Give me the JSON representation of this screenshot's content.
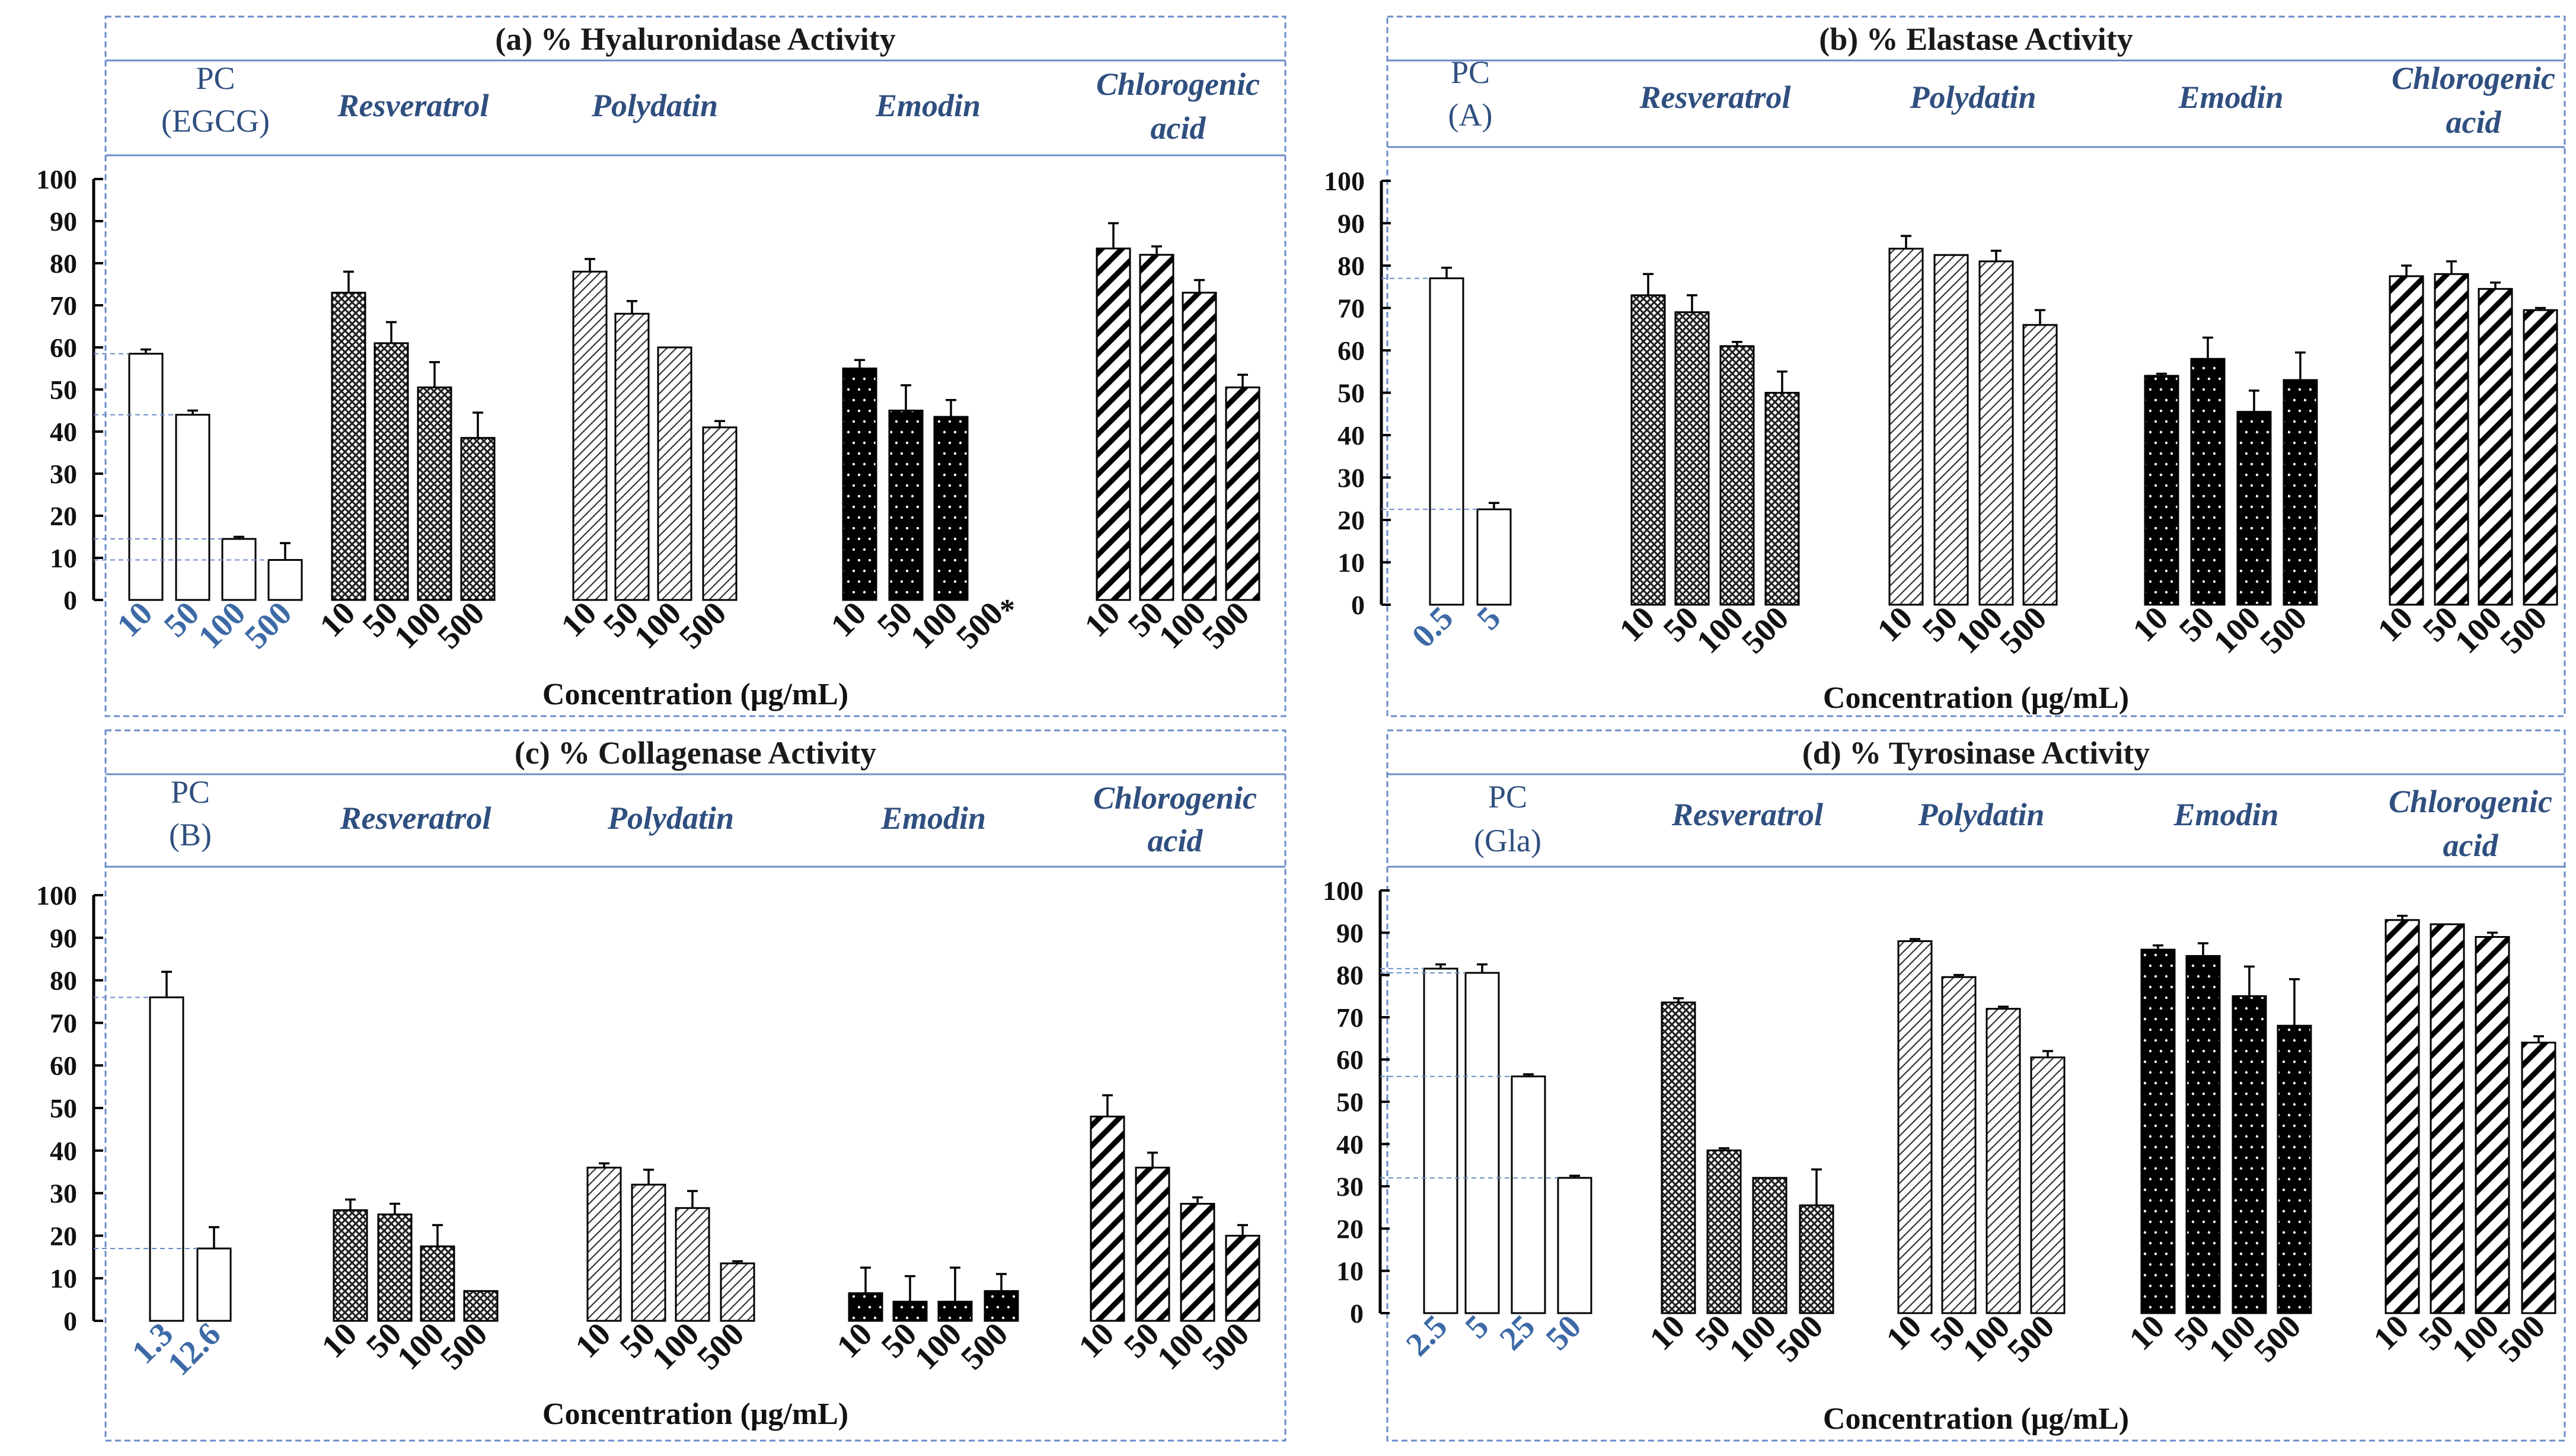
{
  "colors": {
    "border": "#6b8cc7",
    "text_blue": "#2f4f7f",
    "pc_tick": "#3d6aa6",
    "bar_edge": "#000000"
  },
  "chart_data": [
    {
      "id": "a",
      "type": "bar",
      "title": "(a) % Hyaluronidase Activity",
      "xlabel": "Concentration (μg/mL)",
      "ylabel": "",
      "ylim": [
        0,
        100
      ],
      "yticks": [
        "0",
        "10",
        "20",
        "30",
        "40",
        "50",
        "60",
        "70",
        "80",
        "90",
        "100"
      ],
      "groups": [
        {
          "name": "PC (EGCG)",
          "label_lines": [
            "PC",
            "(EGCG)"
          ],
          "pattern": "white",
          "categories": [
            "10",
            "50",
            "100",
            "500"
          ],
          "values": [
            58.5,
            44,
            14.5,
            9.5
          ],
          "errors": [
            1,
            1,
            0.5,
            4
          ]
        },
        {
          "name": "Resveratrol",
          "label_lines": [
            "Resveratrol"
          ],
          "pattern": "cross",
          "categories": [
            "10",
            "50",
            "100",
            "500"
          ],
          "values": [
            73,
            61,
            50.5,
            38.5
          ],
          "errors": [
            5,
            5,
            6,
            6
          ]
        },
        {
          "name": "Polydatin",
          "label_lines": [
            "Polydatin"
          ],
          "pattern": "diag-thin",
          "categories": [
            "10",
            "50",
            "100",
            "500"
          ],
          "values": [
            78,
            68,
            60,
            41
          ],
          "errors": [
            3,
            3,
            0,
            1.5
          ]
        },
        {
          "name": "Emodin",
          "label_lines": [
            "Emodin"
          ],
          "pattern": "dots",
          "categories": [
            "10",
            "50",
            "100",
            "500"
          ],
          "values": [
            55,
            45,
            43.5,
            0
          ],
          "errors": [
            2,
            6,
            4,
            0
          ],
          "annotation": "*"
        },
        {
          "name": "Chlorogenic acid",
          "label_lines": [
            "Chlorogenic",
            "acid"
          ],
          "pattern": "diag-thick",
          "categories": [
            "10",
            "50",
            "100",
            "500"
          ],
          "values": [
            83.5,
            82,
            73,
            50.5
          ],
          "errors": [
            6,
            2,
            3,
            3
          ]
        }
      ]
    },
    {
      "id": "b",
      "type": "bar",
      "title": "(b) % Elastase Activity",
      "xlabel": "Concentration (μg/mL)",
      "ylabel": "",
      "ylim": [
        0,
        100
      ],
      "yticks": [
        "0",
        "10",
        "20",
        "30",
        "40",
        "50",
        "60",
        "70",
        "80",
        "90",
        "100"
      ],
      "groups": [
        {
          "name": "PC (A)",
          "label_lines": [
            "PC",
            "(A)"
          ],
          "pattern": "white",
          "categories": [
            "0.5",
            "5"
          ],
          "values": [
            77,
            22.5
          ],
          "errors": [
            2.5,
            1.5
          ]
        },
        {
          "name": "Resveratrol",
          "label_lines": [
            "Resveratrol"
          ],
          "pattern": "cross",
          "categories": [
            "10",
            "50",
            "100",
            "500"
          ],
          "values": [
            73,
            69,
            61,
            50
          ],
          "errors": [
            5,
            4,
            1,
            5
          ]
        },
        {
          "name": "Polydatin",
          "label_lines": [
            "Polydatin"
          ],
          "pattern": "diag-thin",
          "categories": [
            "10",
            "50",
            "100",
            "500"
          ],
          "values": [
            84,
            82.5,
            81,
            66
          ],
          "errors": [
            3,
            0,
            2.5,
            3.5
          ]
        },
        {
          "name": "Emodin",
          "label_lines": [
            "Emodin"
          ],
          "pattern": "dots",
          "categories": [
            "10",
            "50",
            "100",
            "500"
          ],
          "values": [
            54,
            58,
            45.5,
            53
          ],
          "errors": [
            0.5,
            5,
            5,
            6.5
          ]
        },
        {
          "name": "Chlorogenic acid",
          "label_lines": [
            "Chlorogenic",
            "acid"
          ],
          "pattern": "diag-thick",
          "categories": [
            "10",
            "50",
            "100",
            "500"
          ],
          "values": [
            77.5,
            78,
            74.5,
            69.5
          ],
          "errors": [
            2.5,
            3,
            1.5,
            0.5
          ]
        }
      ]
    },
    {
      "id": "c",
      "type": "bar",
      "title": "(c) % Collagenase Activity",
      "xlabel": "Concentration (μg/mL)",
      "ylabel": "",
      "ylim": [
        0,
        100
      ],
      "yticks": [
        "0",
        "10",
        "20",
        "30",
        "40",
        "50",
        "60",
        "70",
        "80",
        "90",
        "100"
      ],
      "groups": [
        {
          "name": "PC (B)",
          "label_lines": [
            "PC",
            "(B)"
          ],
          "pattern": "white",
          "categories": [
            "1.3",
            "12.6"
          ],
          "values": [
            76,
            17
          ],
          "errors": [
            6,
            5
          ]
        },
        {
          "name": "Resveratrol",
          "label_lines": [
            "Resveratrol"
          ],
          "pattern": "cross",
          "categories": [
            "10",
            "50",
            "100",
            "500"
          ],
          "values": [
            26,
            25,
            17.5,
            7
          ],
          "errors": [
            2.5,
            2.5,
            5,
            0
          ]
        },
        {
          "name": "Polydatin",
          "label_lines": [
            "Polydatin"
          ],
          "pattern": "diag-thin",
          "categories": [
            "10",
            "50",
            "100",
            "500"
          ],
          "values": [
            36,
            32,
            26.5,
            13.5
          ],
          "errors": [
            1,
            3.5,
            4,
            0.5
          ]
        },
        {
          "name": "Emodin",
          "label_lines": [
            "Emodin"
          ],
          "pattern": "dots",
          "categories": [
            "10",
            "50",
            "100",
            "500"
          ],
          "values": [
            6.5,
            4.5,
            4.5,
            7
          ],
          "errors": [
            6,
            6,
            8,
            4
          ]
        },
        {
          "name": "Chlorogenic acid",
          "label_lines": [
            "Chlorogenic",
            "acid"
          ],
          "pattern": "diag-thick",
          "categories": [
            "10",
            "50",
            "100",
            "500"
          ],
          "values": [
            48,
            36,
            27.5,
            20
          ],
          "errors": [
            5,
            3.5,
            1.5,
            2.5
          ]
        }
      ]
    },
    {
      "id": "d",
      "type": "bar",
      "title": "(d) % Tyrosinase Activity",
      "xlabel": "Concentration (μg/mL)",
      "ylabel": "",
      "ylim": [
        0,
        100
      ],
      "yticks": [
        "0",
        "10",
        "20",
        "30",
        "40",
        "50",
        "60",
        "70",
        "80",
        "90",
        "100"
      ],
      "groups": [
        {
          "name": "PC (Gla)",
          "label_lines": [
            "PC",
            "(Gla)"
          ],
          "pattern": "white",
          "categories": [
            "2.5",
            "5",
            "25",
            "50"
          ],
          "values": [
            81.5,
            80.5,
            56,
            32
          ],
          "errors": [
            1,
            2,
            0.5,
            0.5
          ]
        },
        {
          "name": "Resveratrol",
          "label_lines": [
            "Resveratrol"
          ],
          "pattern": "cross",
          "categories": [
            "10",
            "50",
            "100",
            "500"
          ],
          "values": [
            73.5,
            38.5,
            32,
            25.5
          ],
          "errors": [
            1,
            0.5,
            0,
            8.5
          ]
        },
        {
          "name": "Polydatin",
          "label_lines": [
            "Polydatin"
          ],
          "pattern": "diag-thin",
          "categories": [
            "10",
            "50",
            "100",
            "500"
          ],
          "values": [
            88,
            79.5,
            72,
            60.5
          ],
          "errors": [
            0.5,
            0.5,
            0.5,
            1.5
          ]
        },
        {
          "name": "Emodin",
          "label_lines": [
            "Emodin"
          ],
          "pattern": "dots",
          "categories": [
            "10",
            "50",
            "100",
            "500"
          ],
          "values": [
            86,
            84.5,
            75,
            68
          ],
          "errors": [
            1,
            3,
            7,
            11
          ]
        },
        {
          "name": "Chlorogenic acid",
          "label_lines": [
            "Chlorogenic",
            "acid"
          ],
          "pattern": "diag-thick",
          "categories": [
            "10",
            "50",
            "100",
            "500"
          ],
          "values": [
            93,
            92,
            89,
            64
          ],
          "errors": [
            1,
            0,
            1,
            1.5
          ]
        }
      ]
    }
  ]
}
